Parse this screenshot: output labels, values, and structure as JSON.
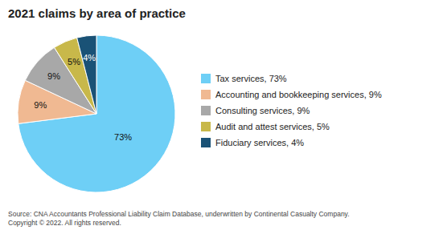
{
  "chart_data": {
    "type": "pie",
    "title": "2021 claims by area of practice",
    "categories": [
      "Tax services, 73%",
      "Accounting and bookkeeping services, 9%",
      "Consulting services, 9%",
      "Audit and attest services, 5%",
      "Fiduciary services, 4%"
    ],
    "values": [
      73,
      9,
      9,
      5,
      4
    ],
    "value_labels": [
      "73%",
      "9%",
      "9%",
      "5%",
      "4%"
    ],
    "data_labels": true,
    "colors": [
      "#6ecff6",
      "#f0b992",
      "#a8a8a8",
      "#c8b84a",
      "#1a5276"
    ],
    "legend": "right",
    "annotations": [
      "Source: CNA Accountants Professional Liability Claim Database, underwritten by Continental Casualty Company.\nCopyright © 2022. All rights reserved."
    ]
  }
}
